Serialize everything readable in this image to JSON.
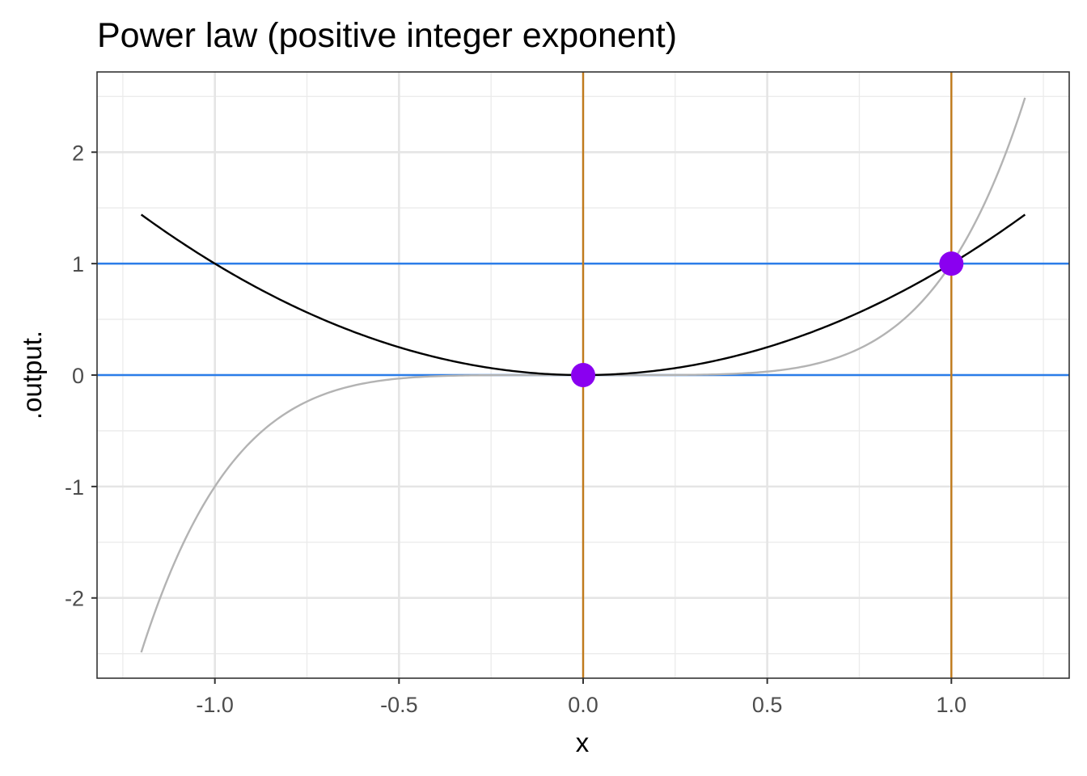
{
  "chart_data": {
    "type": "line",
    "title": "Power law (positive integer exponent)",
    "xlabel": "x",
    "ylabel": ".output.",
    "xlim": [
      -1.32,
      1.32
    ],
    "ylim": [
      -2.72,
      2.72
    ],
    "x_ticks": [
      -1.0,
      -0.5,
      0.0,
      0.5,
      1.0
    ],
    "x_tick_labels": [
      "-1.0",
      "-0.5",
      "0.0",
      "0.5",
      "1.0"
    ],
    "y_ticks": [
      -2,
      -1,
      0,
      1,
      2
    ],
    "y_tick_labels": [
      "-2",
      "-1",
      "0",
      "1",
      "2"
    ],
    "grid": true,
    "theme": "bw",
    "series": [
      {
        "function": "x^2",
        "x_range": [
          -1.2,
          1.2
        ],
        "color": "#000000"
      },
      {
        "function": "x^5",
        "x_range": [
          -1.2,
          1.2
        ],
        "color": "#b3b3b3"
      }
    ],
    "horizontal_lines": [
      {
        "y": 0,
        "color": "#2b7de9"
      },
      {
        "y": 1,
        "color": "#2b7de9"
      }
    ],
    "vertical_lines": [
      {
        "x": 0,
        "color": "#c07a1c"
      },
      {
        "x": 1,
        "color": "#c07a1c"
      }
    ],
    "points": [
      {
        "x": 0,
        "y": 0,
        "color": "#8a00f0"
      },
      {
        "x": 1,
        "y": 1,
        "color": "#8a00f0"
      }
    ]
  }
}
